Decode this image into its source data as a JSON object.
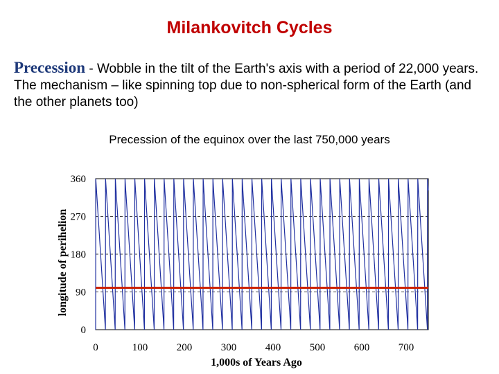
{
  "slide": {
    "title": "Milankovitch Cycles",
    "term": "Precession",
    "description": " - Wobble in the tilt of the Earth's axis with a period of 22,000 years. The mechanism – like spinning top due to non-spherical form of the Earth (and the other planets too)"
  },
  "colors": {
    "title": "#c00000",
    "term": "#1f3a7a",
    "series": "#1f2fa0",
    "reference_line": "#cc2200"
  },
  "chart_data": {
    "type": "line",
    "title": "Precession of the equinox over the last 750,000 years",
    "xlabel": "1,000s of Years Ago",
    "ylabel": "longitude of perihelion",
    "xlim": [
      0,
      750
    ],
    "ylim": [
      0,
      360
    ],
    "xticks": [
      0,
      100,
      200,
      300,
      400,
      500,
      600,
      700
    ],
    "yticks": [
      0,
      90,
      180,
      270,
      360
    ],
    "grid": true,
    "series": [
      {
        "name": "longitude of perihelion",
        "form": "sawtooth",
        "period": 22,
        "min": 0,
        "max": 360
      },
      {
        "name": "reference line",
        "form": "horizontal",
        "value": 100
      }
    ]
  }
}
